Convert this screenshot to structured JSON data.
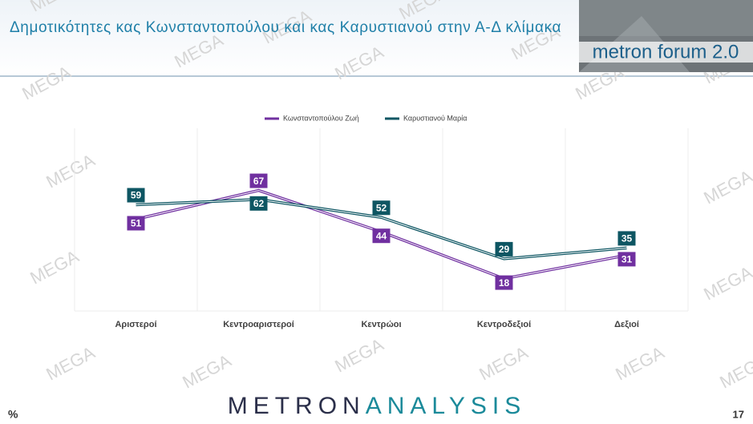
{
  "header": {
    "title": "Δημοτικότητες κας Κωνσταντοπούλου και κας Καρυστιανού στην Α-Δ κλίμακα",
    "badge": "metron forum 2.0"
  },
  "watermark": "MEGA",
  "chart_data": {
    "type": "line",
    "categories": [
      "Αριστεροί",
      "Κεντροαριστεροί",
      "Κεντρώοι",
      "Κεντροδεξιοί",
      "Δεξιοί"
    ],
    "series": [
      {
        "name": "Κωνσταντοπούλου Ζωή",
        "color": "#7030a0",
        "values": [
          51,
          67,
          44,
          18,
          31
        ]
      },
      {
        "name": "Καρυστιανού Μαρία",
        "color": "#0e5663",
        "values": [
          59,
          62,
          52,
          29,
          35
        ]
      }
    ],
    "legend": "top",
    "grid": true
  },
  "footer": {
    "unit": "%",
    "logo_left": "METRON",
    "logo_right": "ANALYSIS",
    "page": "17"
  }
}
